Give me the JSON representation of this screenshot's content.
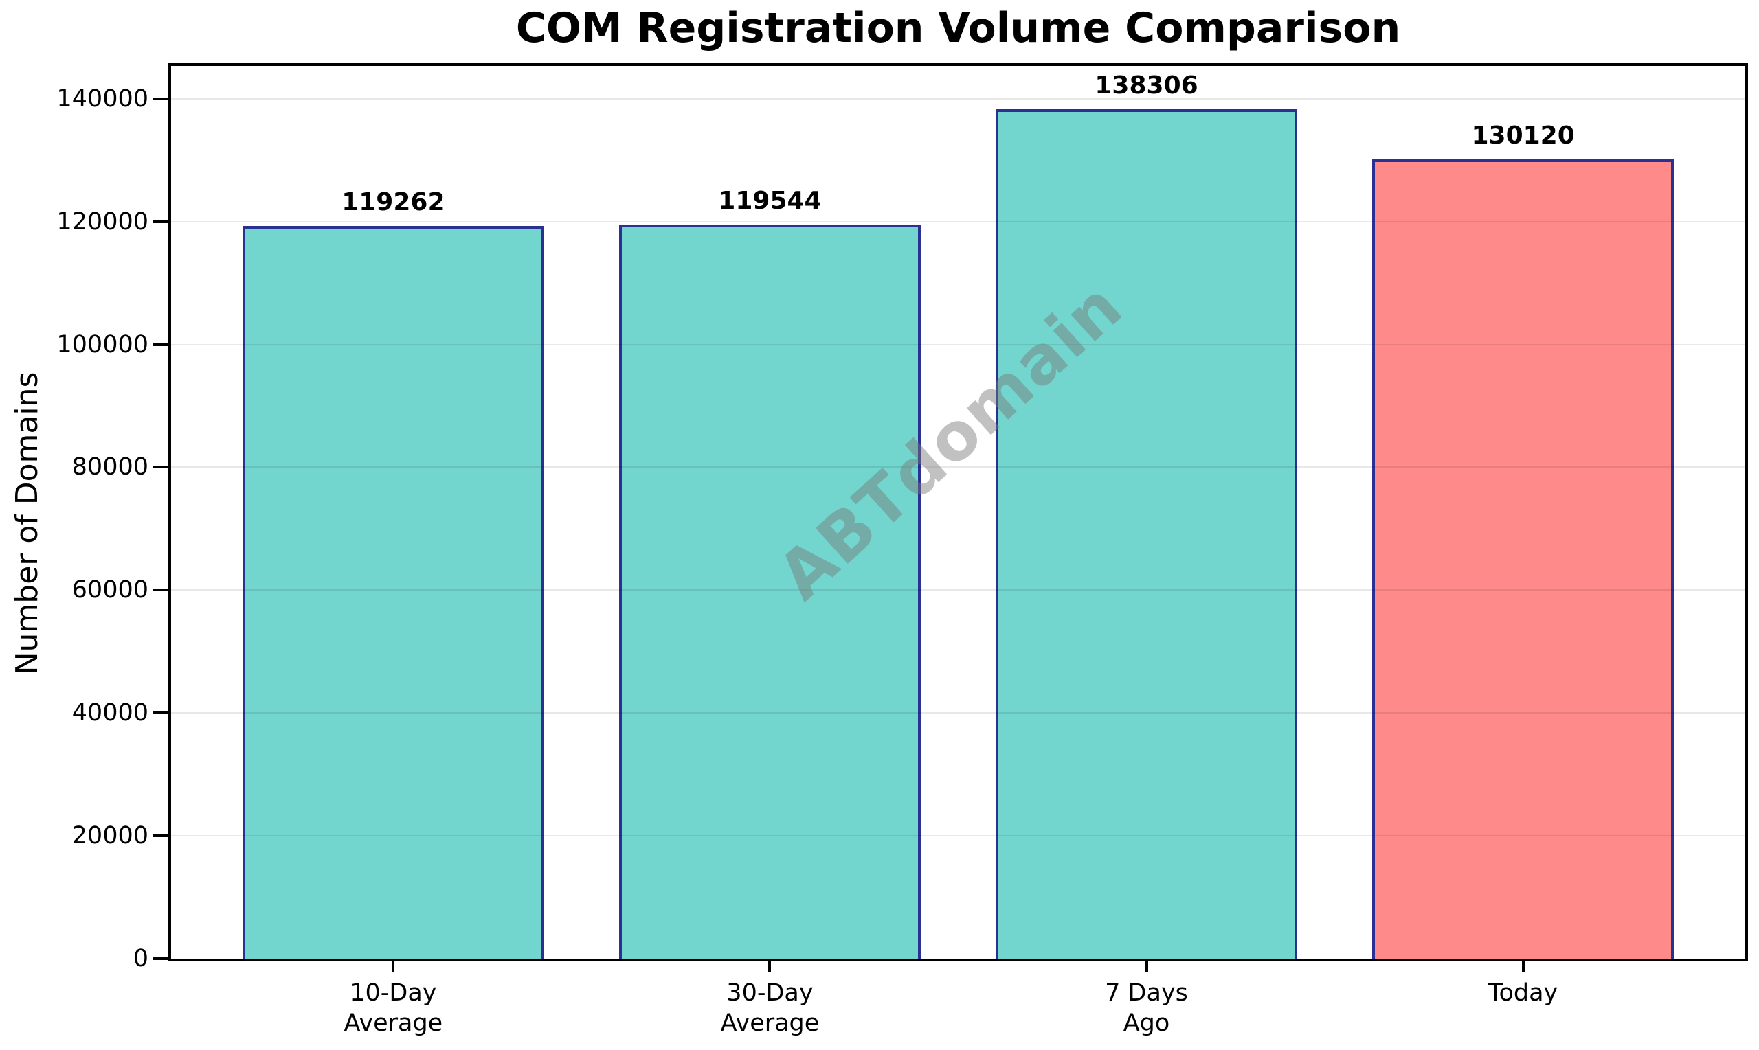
{
  "figure": {
    "title": "COM Registration Volume Comparison",
    "ylabel": "Number of Domains"
  },
  "chart_data": {
    "type": "bar",
    "title": "COM Registration Volume Comparison",
    "xlabel": "",
    "ylabel": "Number of Domains",
    "categories": [
      "10-Day\nAverage",
      "30-Day\nAverage",
      "7 Days\nAgo",
      "Today"
    ],
    "values": [
      119262,
      119544,
      138306,
      130120
    ],
    "value_labels": [
      "119262",
      "119544",
      "138306",
      "130120"
    ],
    "bar_colors": [
      "#72D6CE",
      "#72D6CE",
      "#72D6CE",
      "#FF8A8A"
    ],
    "bar_edge_color": "#2A3193",
    "yticks": [
      0,
      20000,
      40000,
      60000,
      80000,
      100000,
      120000,
      140000
    ],
    "ylim": [
      0,
      145333
    ],
    "xlim": [
      -0.59,
      3.59
    ],
    "bar_width": 0.8,
    "grid": "horizontal",
    "legend": "none",
    "axis_color": "#000000",
    "grid_color": "#E8E8E8",
    "watermark": {
      "text": "ABTdomain",
      "rotation_deg": -42,
      "color": "#787878",
      "opacity": 0.45
    }
  }
}
